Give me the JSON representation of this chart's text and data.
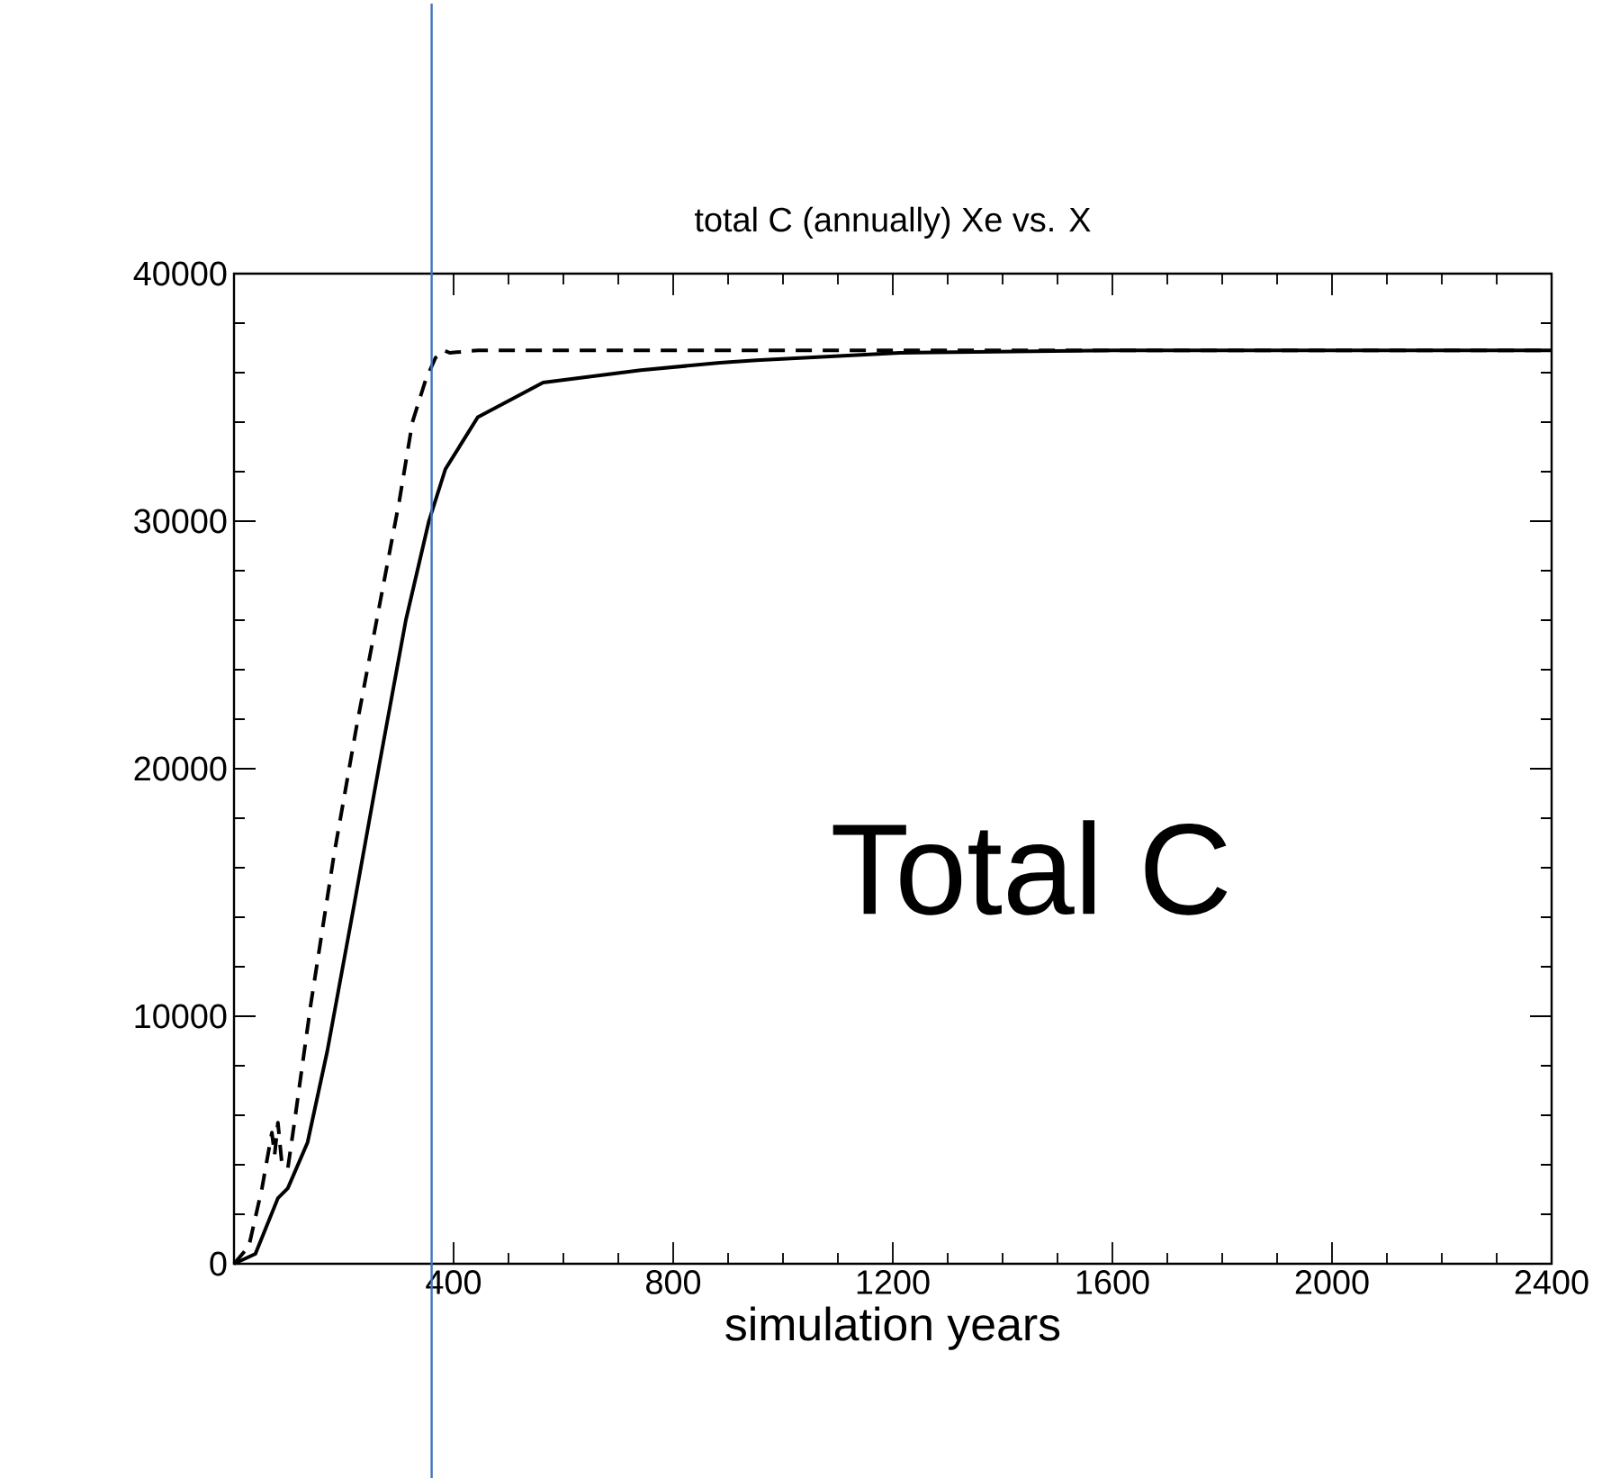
{
  "chart_data": {
    "type": "line",
    "title": "total C (annually) Xe vs. X",
    "xlabel": "simulation years",
    "annotations": [
      "Total C"
    ],
    "xlim": [
      0,
      2400
    ],
    "ylim": [
      0,
      40000
    ],
    "xticks": [
      400,
      800,
      1200,
      1600,
      2000,
      2400
    ],
    "yticks": [
      0,
      10000,
      20000,
      30000,
      40000
    ],
    "ref_lines": [
      {
        "axis": "x",
        "value": 360,
        "color": "#4472c4"
      }
    ],
    "series": [
      {
        "color": "#000000",
        "line_style": "solid",
        "x": [
          0,
          39,
          80,
          98,
          134,
          170,
          218,
          265,
          313,
          355,
          385,
          444,
          563,
          741,
          885,
          951,
          1213,
          1600,
          2400
        ],
        "values": [
          0,
          400,
          2650,
          3050,
          4900,
          8600,
          14400,
          20200,
          26000,
          30000,
          32100,
          34200,
          35600,
          36100,
          36400,
          36500,
          36800,
          36900,
          36900
        ]
      },
      {
        "color": "#000000",
        "line_style": "dashed",
        "x": [
          0,
          27,
          51,
          69,
          74,
          80,
          87,
          98,
          110,
          140,
          182,
          224,
          265,
          301,
          325,
          349,
          367,
          382,
          393,
          444,
          2400
        ],
        "values": [
          0,
          700,
          3050,
          5300,
          4400,
          5700,
          4100,
          3850,
          5700,
          10500,
          16500,
          21800,
          26600,
          30800,
          34000,
          35700,
          36600,
          36900,
          36800,
          36900,
          36900
        ]
      }
    ]
  }
}
